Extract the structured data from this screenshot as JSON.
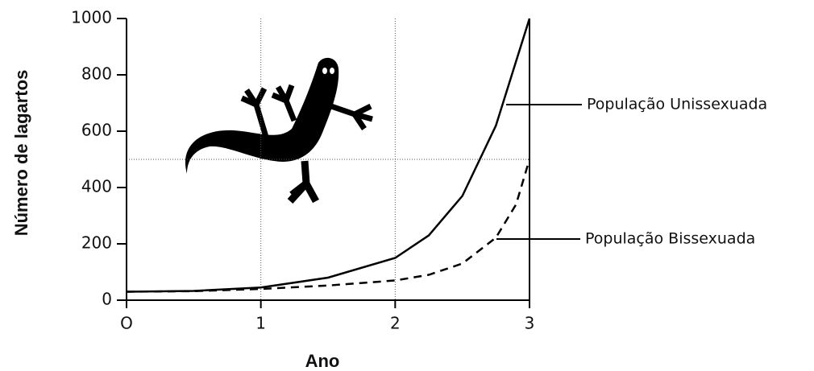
{
  "chart_data": {
    "type": "line",
    "x_label": "Ano",
    "y_label": "Número de lagartos",
    "xlim": [
      0,
      3
    ],
    "ylim": [
      0,
      1000
    ],
    "xticks": [
      {
        "value": 0,
        "label": "O"
      },
      1,
      2,
      3
    ],
    "yticks": [
      0,
      200,
      400,
      600,
      800,
      1000
    ],
    "grid_x": [
      1,
      2
    ],
    "grid_y": [
      500
    ],
    "series": [
      {
        "name": "População Unissexuada",
        "color": "#000000",
        "style": "solid",
        "x": [
          0,
          0.5,
          1,
          1.5,
          2,
          2.25,
          2.5,
          2.75,
          3
        ],
        "values": [
          30,
          33,
          45,
          80,
          150,
          230,
          370,
          620,
          1000
        ]
      },
      {
        "name": "População Bissexuada",
        "color": "#000000",
        "style": "dashed",
        "x": [
          0,
          0.5,
          1,
          1.5,
          2,
          2.25,
          2.5,
          2.75,
          2.9,
          3
        ],
        "values": [
          30,
          32,
          40,
          52,
          70,
          90,
          130,
          222,
          340,
          500
        ]
      }
    ]
  }
}
